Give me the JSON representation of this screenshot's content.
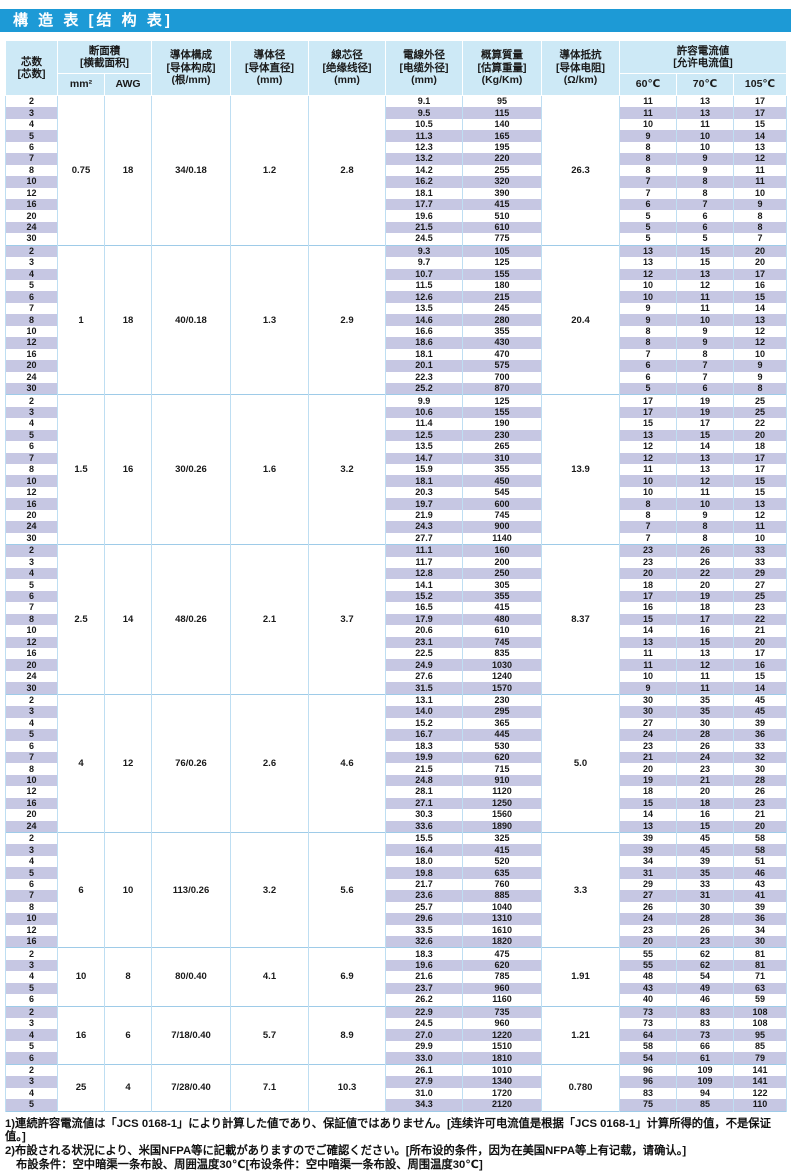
{
  "title": "構 造 表 [结 构 表]",
  "colors": {
    "title_bar": "#1d9ad6",
    "header_bg": "#cde9f6",
    "stripe": "#c6c7e3",
    "grid": "#bedef2",
    "group_line": "#9ecbe8"
  },
  "table": {
    "headers": {
      "cores": {
        "ja": "芯数",
        "zh": "[芯数]"
      },
      "area": {
        "ja": "断面積",
        "zh": "[横截面积]",
        "sub": [
          "mm²",
          "AWG"
        ]
      },
      "construction": {
        "ja": "導体構成",
        "zh": "[导体构成]",
        "unit": "(根/mm)"
      },
      "conductor_dia": {
        "ja": "導体径",
        "zh": "[导体直径]",
        "unit": "(mm)"
      },
      "insulated_dia": {
        "ja": "線芯径",
        "zh": "[绝缘线径]",
        "unit": "(mm)"
      },
      "cable_od": {
        "ja": "電線外径",
        "zh": "[电缆外径]",
        "unit": "(mm)"
      },
      "weight": {
        "ja": "概算質量",
        "zh": "[估算重量]",
        "unit": "(Kg/Km)"
      },
      "resistance": {
        "ja": "導体抵抗",
        "zh": "[导体电阻]",
        "unit": "(Ω/km)"
      },
      "current": {
        "ja": "許容電流値",
        "zh": "[允许电流值]",
        "sub": [
          "60℃",
          "70℃",
          "105℃"
        ]
      }
    },
    "row_columns": [
      "cores",
      "cable_od_mm",
      "weight_kg_km",
      "current_60c",
      "current_70c",
      "current_105c"
    ],
    "groups": [
      {
        "mm2": "0.75",
        "awg": "18",
        "construction": "34/0.18",
        "conductor_dia": "1.2",
        "insulated_dia": "2.8",
        "resistance": "26.3",
        "rows": [
          [
            "2",
            "9.1",
            "95",
            "11",
            "13",
            "17"
          ],
          [
            "3",
            "9.5",
            "115",
            "11",
            "13",
            "17"
          ],
          [
            "4",
            "10.5",
            "140",
            "10",
            "11",
            "15"
          ],
          [
            "5",
            "11.3",
            "165",
            "9",
            "10",
            "14"
          ],
          [
            "6",
            "12.3",
            "195",
            "8",
            "10",
            "13"
          ],
          [
            "7",
            "13.2",
            "220",
            "8",
            "9",
            "12"
          ],
          [
            "8",
            "14.2",
            "255",
            "8",
            "9",
            "11"
          ],
          [
            "10",
            "16.2",
            "320",
            "7",
            "8",
            "11"
          ],
          [
            "12",
            "18.1",
            "390",
            "7",
            "8",
            "10"
          ],
          [
            "16",
            "17.7",
            "415",
            "6",
            "7",
            "9"
          ],
          [
            "20",
            "19.6",
            "510",
            "5",
            "6",
            "8"
          ],
          [
            "24",
            "21.5",
            "610",
            "5",
            "6",
            "8"
          ],
          [
            "30",
            "24.5",
            "775",
            "5",
            "5",
            "7"
          ]
        ]
      },
      {
        "mm2": "1",
        "awg": "18",
        "construction": "40/0.18",
        "conductor_dia": "1.3",
        "insulated_dia": "2.9",
        "resistance": "20.4",
        "rows": [
          [
            "2",
            "9.3",
            "105",
            "13",
            "15",
            "20"
          ],
          [
            "3",
            "9.7",
            "125",
            "13",
            "15",
            "20"
          ],
          [
            "4",
            "10.7",
            "155",
            "12",
            "13",
            "17"
          ],
          [
            "5",
            "11.5",
            "180",
            "10",
            "12",
            "16"
          ],
          [
            "6",
            "12.6",
            "215",
            "10",
            "11",
            "15"
          ],
          [
            "7",
            "13.5",
            "245",
            "9",
            "11",
            "14"
          ],
          [
            "8",
            "14.6",
            "280",
            "9",
            "10",
            "13"
          ],
          [
            "10",
            "16.6",
            "355",
            "8",
            "9",
            "12"
          ],
          [
            "12",
            "18.6",
            "430",
            "8",
            "9",
            "12"
          ],
          [
            "16",
            "18.1",
            "470",
            "7",
            "8",
            "10"
          ],
          [
            "20",
            "20.1",
            "575",
            "6",
            "7",
            "9"
          ],
          [
            "24",
            "22.3",
            "700",
            "6",
            "7",
            "9"
          ],
          [
            "30",
            "25.2",
            "870",
            "5",
            "6",
            "8"
          ]
        ]
      },
      {
        "mm2": "1.5",
        "awg": "16",
        "construction": "30/0.26",
        "conductor_dia": "1.6",
        "insulated_dia": "3.2",
        "resistance": "13.9",
        "rows": [
          [
            "2",
            "9.9",
            "125",
            "17",
            "19",
            "25"
          ],
          [
            "3",
            "10.6",
            "155",
            "17",
            "19",
            "25"
          ],
          [
            "4",
            "11.4",
            "190",
            "15",
            "17",
            "22"
          ],
          [
            "5",
            "12.5",
            "230",
            "13",
            "15",
            "20"
          ],
          [
            "6",
            "13.5",
            "265",
            "12",
            "14",
            "18"
          ],
          [
            "7",
            "14.7",
            "310",
            "12",
            "13",
            "17"
          ],
          [
            "8",
            "15.9",
            "355",
            "11",
            "13",
            "17"
          ],
          [
            "10",
            "18.1",
            "450",
            "10",
            "12",
            "15"
          ],
          [
            "12",
            "20.3",
            "545",
            "10",
            "11",
            "15"
          ],
          [
            "16",
            "19.7",
            "600",
            "8",
            "10",
            "13"
          ],
          [
            "20",
            "21.9",
            "745",
            "8",
            "9",
            "12"
          ],
          [
            "24",
            "24.3",
            "900",
            "7",
            "8",
            "11"
          ],
          [
            "30",
            "27.7",
            "1140",
            "7",
            "8",
            "10"
          ]
        ]
      },
      {
        "mm2": "2.5",
        "awg": "14",
        "construction": "48/0.26",
        "conductor_dia": "2.1",
        "insulated_dia": "3.7",
        "resistance": "8.37",
        "rows": [
          [
            "2",
            "11.1",
            "160",
            "23",
            "26",
            "33"
          ],
          [
            "3",
            "11.7",
            "200",
            "23",
            "26",
            "33"
          ],
          [
            "4",
            "12.8",
            "250",
            "20",
            "22",
            "29"
          ],
          [
            "5",
            "14.1",
            "305",
            "18",
            "20",
            "27"
          ],
          [
            "6",
            "15.2",
            "355",
            "17",
            "19",
            "25"
          ],
          [
            "7",
            "16.5",
            "415",
            "16",
            "18",
            "23"
          ],
          [
            "8",
            "17.9",
            "480",
            "15",
            "17",
            "22"
          ],
          [
            "10",
            "20.6",
            "610",
            "14",
            "16",
            "21"
          ],
          [
            "12",
            "23.1",
            "745",
            "13",
            "15",
            "20"
          ],
          [
            "16",
            "22.5",
            "835",
            "11",
            "13",
            "17"
          ],
          [
            "20",
            "24.9",
            "1030",
            "11",
            "12",
            "16"
          ],
          [
            "24",
            "27.6",
            "1240",
            "10",
            "11",
            "15"
          ],
          [
            "30",
            "31.5",
            "1570",
            "9",
            "11",
            "14"
          ]
        ]
      },
      {
        "mm2": "4",
        "awg": "12",
        "construction": "76/0.26",
        "conductor_dia": "2.6",
        "insulated_dia": "4.6",
        "resistance": "5.0",
        "rows": [
          [
            "2",
            "13.1",
            "230",
            "30",
            "35",
            "45"
          ],
          [
            "3",
            "14.0",
            "295",
            "30",
            "35",
            "45"
          ],
          [
            "4",
            "15.2",
            "365",
            "27",
            "30",
            "39"
          ],
          [
            "5",
            "16.7",
            "445",
            "24",
            "28",
            "36"
          ],
          [
            "6",
            "18.3",
            "530",
            "23",
            "26",
            "33"
          ],
          [
            "7",
            "19.9",
            "620",
            "21",
            "24",
            "32"
          ],
          [
            "8",
            "21.5",
            "715",
            "20",
            "23",
            "30"
          ],
          [
            "10",
            "24.8",
            "910",
            "19",
            "21",
            "28"
          ],
          [
            "12",
            "28.1",
            "1120",
            "18",
            "20",
            "26"
          ],
          [
            "16",
            "27.1",
            "1250",
            "15",
            "18",
            "23"
          ],
          [
            "20",
            "30.3",
            "1560",
            "14",
            "16",
            "21"
          ],
          [
            "24",
            "33.6",
            "1890",
            "13",
            "15",
            "20"
          ]
        ]
      },
      {
        "mm2": "6",
        "awg": "10",
        "construction": "113/0.26",
        "conductor_dia": "3.2",
        "insulated_dia": "5.6",
        "resistance": "3.3",
        "rows": [
          [
            "2",
            "15.5",
            "325",
            "39",
            "45",
            "58"
          ],
          [
            "3",
            "16.4",
            "415",
            "39",
            "45",
            "58"
          ],
          [
            "4",
            "18.0",
            "520",
            "34",
            "39",
            "51"
          ],
          [
            "5",
            "19.8",
            "635",
            "31",
            "35",
            "46"
          ],
          [
            "6",
            "21.7",
            "760",
            "29",
            "33",
            "43"
          ],
          [
            "7",
            "23.6",
            "885",
            "27",
            "31",
            "41"
          ],
          [
            "8",
            "25.7",
            "1040",
            "26",
            "30",
            "39"
          ],
          [
            "10",
            "29.6",
            "1310",
            "24",
            "28",
            "36"
          ],
          [
            "12",
            "33.5",
            "1610",
            "23",
            "26",
            "34"
          ],
          [
            "16",
            "32.6",
            "1820",
            "20",
            "23",
            "30"
          ]
        ]
      },
      {
        "mm2": "10",
        "awg": "8",
        "construction": "80/0.40",
        "conductor_dia": "4.1",
        "insulated_dia": "6.9",
        "resistance": "1.91",
        "rows": [
          [
            "2",
            "18.3",
            "475",
            "55",
            "62",
            "81"
          ],
          [
            "3",
            "19.6",
            "620",
            "55",
            "62",
            "81"
          ],
          [
            "4",
            "21.6",
            "785",
            "48",
            "54",
            "71"
          ],
          [
            "5",
            "23.7",
            "960",
            "43",
            "49",
            "63"
          ],
          [
            "6",
            "26.2",
            "1160",
            "40",
            "46",
            "59"
          ]
        ]
      },
      {
        "mm2": "16",
        "awg": "6",
        "construction": "7/18/0.40",
        "conductor_dia": "5.7",
        "insulated_dia": "8.9",
        "resistance": "1.21",
        "rows": [
          [
            "2",
            "22.9",
            "735",
            "73",
            "83",
            "108"
          ],
          [
            "3",
            "24.5",
            "960",
            "73",
            "83",
            "108"
          ],
          [
            "4",
            "27.0",
            "1220",
            "64",
            "73",
            "95"
          ],
          [
            "5",
            "29.9",
            "1510",
            "58",
            "66",
            "85"
          ],
          [
            "6",
            "33.0",
            "1810",
            "54",
            "61",
            "79"
          ]
        ]
      },
      {
        "mm2": "25",
        "awg": "4",
        "construction": "7/28/0.40",
        "conductor_dia": "7.1",
        "insulated_dia": "10.3",
        "resistance": "0.780",
        "rows": [
          [
            "2",
            "26.1",
            "1010",
            "96",
            "109",
            "141"
          ],
          [
            "3",
            "27.9",
            "1340",
            "96",
            "109",
            "141"
          ],
          [
            "4",
            "31.0",
            "1720",
            "83",
            "94",
            "122"
          ],
          [
            "5",
            "34.3",
            "2120",
            "75",
            "85",
            "110"
          ]
        ]
      }
    ]
  },
  "footnotes": [
    "1)連続許容電流値は「JCS 0168-1」により計算した値であり、保証値ではありません。[连续许可电流值是根据「JCS 0168-1」计算所得的值，不是保证值。]",
    "2)布設される状況により、米国NFPA等に記載がありますのでご確認ください。[所布设的条件，因为在美国NFPA等上有记载，请确认。]",
    "布設条件：空中暗渠一条布設、周囲温度30℃[布设条件：空中暗渠一条布設、周围温度30℃]"
  ]
}
